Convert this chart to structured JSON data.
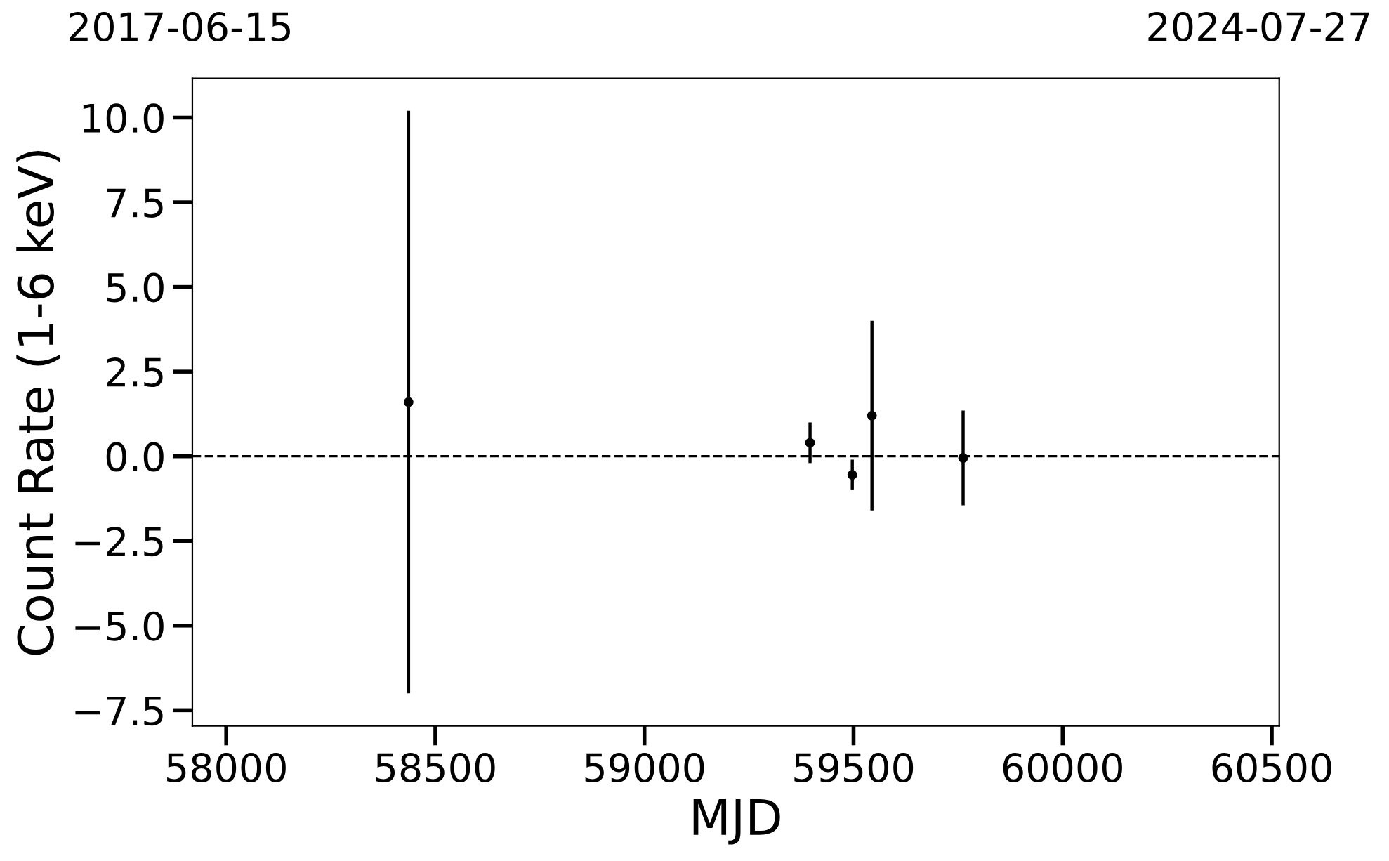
{
  "chart_data": {
    "type": "scatter",
    "xlabel": "MJD",
    "ylabel": "Count Rate (1-6 keV)",
    "x": [
      58436,
      59396,
      59497,
      59544,
      59762
    ],
    "series": [
      {
        "color": "#000000",
        "values": [
          1.6,
          0.4,
          -0.55,
          1.2,
          -0.05
        ],
        "errors": [
          8.6,
          0.6,
          0.45,
          2.8,
          1.4
        ]
      }
    ],
    "marker": "circle",
    "grid": false,
    "legend": false,
    "xlim": [
      57919,
      60518
    ],
    "xticks": [
      58000,
      58500,
      59000,
      59500,
      60000,
      60500
    ],
    "ylim": [
      -7.96,
      11.16
    ],
    "yticks": [
      {
        "value": -7.5,
        "label": "−7.5"
      },
      {
        "value": -5,
        "label": "−5.0"
      },
      {
        "value": -2.5,
        "label": "−2.5"
      },
      {
        "value": 0,
        "label": "0.0"
      },
      {
        "value": 2.5,
        "label": "2.5"
      },
      {
        "value": 5,
        "label": "5.0"
      },
      {
        "value": 7.5,
        "label": "7.5"
      },
      {
        "value": 10,
        "label": "10.0"
      }
    ],
    "annotations": [
      "2017-06-15",
      "2024-07-27"
    ],
    "ref_lines": [
      {
        "axis": "y",
        "value": 0,
        "color": "#000000",
        "line_style": "dashed"
      }
    ]
  }
}
